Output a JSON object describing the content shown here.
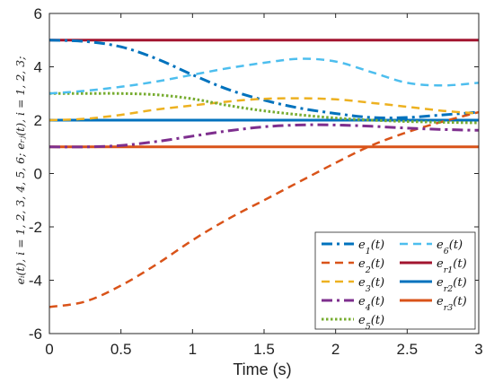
{
  "chart_data": {
    "type": "line",
    "title": "",
    "xlabel": "Time (s)",
    "ylabel": "e_i(t), i=1,2,3,4,5,6; e_rj(t), i=1,2,3;",
    "ylabel_display": "eᵢ(t), i = 1, 2, 3, 4, 5, 6; eᵣⱼ(t), i = 1, 2, 3;",
    "xlim": [
      0,
      3
    ],
    "ylim": [
      -6,
      6
    ],
    "xticks": [
      "0",
      "0.5",
      "1",
      "1.5",
      "2",
      "2.5",
      "3"
    ],
    "yticks": [
      "-6",
      "-4",
      "-2",
      "0",
      "2",
      "4",
      "6"
    ],
    "xtick_values": [
      0,
      0.5,
      1,
      1.5,
      2,
      2.5,
      3
    ],
    "ytick_values": [
      -6,
      -4,
      -2,
      0,
      2,
      4,
      6
    ],
    "grid": false,
    "legend_position": "bottom-right",
    "x": [
      0,
      0.25,
      0.5,
      0.75,
      1.0,
      1.25,
      1.5,
      1.75,
      2.0,
      2.25,
      2.5,
      2.75,
      3.0
    ],
    "series": [
      {
        "name": "e1(t)",
        "label_main": "e",
        "label_sub": "1",
        "color": "#0072BD",
        "dash": "dashdot",
        "width": 3,
        "values": [
          5.0,
          4.95,
          4.75,
          4.3,
          3.7,
          3.15,
          2.75,
          2.45,
          2.25,
          2.1,
          2.1,
          2.2,
          2.3
        ]
      },
      {
        "name": "e2(t)",
        "label_main": "e",
        "label_sub": "2",
        "color": "#D95319",
        "dash": "dashed",
        "width": 2.5,
        "values": [
          -5.0,
          -4.8,
          -4.2,
          -3.4,
          -2.5,
          -1.7,
          -1.0,
          -0.3,
          0.4,
          1.05,
          1.55,
          1.95,
          2.3
        ]
      },
      {
        "name": "e3(t)",
        "label_main": "e",
        "label_sub": "3",
        "color": "#EDB120",
        "dash": "dashed",
        "width": 2.5,
        "values": [
          2.0,
          2.05,
          2.2,
          2.4,
          2.55,
          2.7,
          2.8,
          2.82,
          2.78,
          2.65,
          2.5,
          2.35,
          2.25
        ]
      },
      {
        "name": "e4(t)",
        "label_main": "e",
        "label_sub": "4",
        "color": "#7E2F8E",
        "dash": "dashdot",
        "width": 3,
        "values": [
          1.0,
          1.0,
          1.05,
          1.2,
          1.4,
          1.6,
          1.75,
          1.82,
          1.82,
          1.77,
          1.7,
          1.65,
          1.62
        ]
      },
      {
        "name": "e5(t)",
        "label_main": "e",
        "label_sub": "5",
        "color": "#77AC30",
        "dash": "dotted",
        "width": 3,
        "values": [
          3.0,
          3.0,
          3.0,
          2.95,
          2.8,
          2.55,
          2.35,
          2.2,
          2.08,
          2.0,
          1.95,
          1.92,
          1.9
        ]
      },
      {
        "name": "e6(t)",
        "label_main": "e",
        "label_sub": "6",
        "color": "#4DBEEE",
        "dash": "dashed",
        "width": 2.5,
        "values": [
          3.0,
          3.1,
          3.25,
          3.45,
          3.7,
          3.95,
          4.15,
          4.3,
          4.2,
          3.8,
          3.4,
          3.3,
          3.4
        ]
      },
      {
        "name": "er1(t)",
        "label_main": "e",
        "label_sub": "r1",
        "color": "#A2142F",
        "dash": "solid",
        "width": 3,
        "values": [
          5,
          5,
          5,
          5,
          5,
          5,
          5,
          5,
          5,
          5,
          5,
          5,
          5
        ]
      },
      {
        "name": "er2(t)",
        "label_main": "e",
        "label_sub": "r2",
        "color": "#0072BD",
        "dash": "solid",
        "width": 3,
        "values": [
          2,
          2,
          2,
          2,
          2,
          2,
          2,
          2,
          2,
          2,
          2,
          2,
          2
        ]
      },
      {
        "name": "er3(t)",
        "label_main": "e",
        "label_sub": "r3",
        "color": "#D95319",
        "dash": "solid",
        "width": 3,
        "values": [
          1,
          1,
          1,
          1,
          1,
          1,
          1,
          1,
          1,
          1,
          1,
          1,
          1
        ]
      }
    ],
    "legend_order": [
      0,
      5,
      1,
      6,
      2,
      7,
      3,
      8,
      4
    ]
  }
}
